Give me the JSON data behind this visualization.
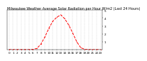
{
  "title": "Milwaukee Weather Average Solar Radiation per Hour W/m2 (Last 24 Hours)",
  "hours": [
    0,
    1,
    2,
    3,
    4,
    5,
    6,
    7,
    8,
    9,
    10,
    11,
    12,
    13,
    14,
    15,
    16,
    17,
    18,
    19,
    20,
    21,
    22,
    23
  ],
  "values": [
    0,
    0,
    0,
    0,
    0,
    0,
    2,
    15,
    70,
    160,
    270,
    360,
    410,
    440,
    390,
    310,
    210,
    100,
    25,
    3,
    0,
    0,
    0,
    0
  ],
  "line_color": "#ff0000",
  "bg_color": "#ffffff",
  "grid_color": "#bbbbbb",
  "ylim": [
    0,
    500
  ],
  "yticks": [
    100,
    200,
    300,
    400,
    500
  ],
  "ytick_labels": [
    "1",
    "2",
    "3",
    "4",
    "5"
  ],
  "title_fontsize": 3.5,
  "tick_fontsize": 3.0
}
